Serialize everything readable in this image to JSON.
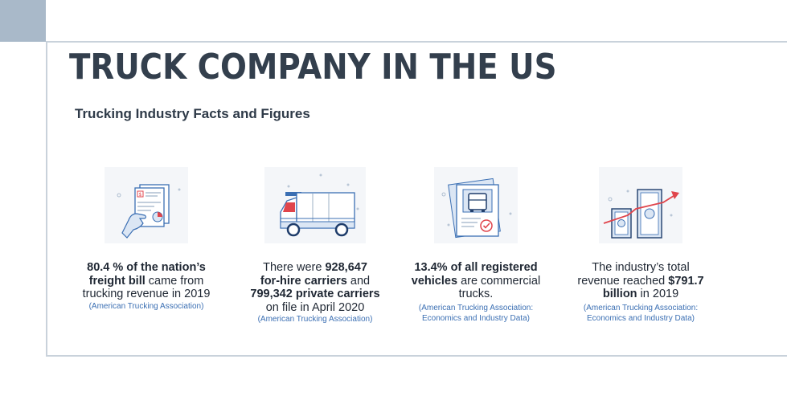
{
  "title": "TRUCK COMPANY IN THE US",
  "subtitle": "Trucking Industry Facts and Figures",
  "facts": [
    {
      "icon": "invoice-hand-icon",
      "p1": "80.4 % of the nation’s",
      "p2": "freight bill",
      "p3": " came from",
      "p4": "trucking revenue in 2019",
      "source": "(American Trucking Association)"
    },
    {
      "icon": "delivery-truck-icon",
      "p1": "There were ",
      "p2": "928,647",
      "p3": "for-hire carriers",
      "p4": " and",
      "p5": "799,342 private carriers",
      "p6": "on file in April 2020",
      "source": "(American Trucking Association)"
    },
    {
      "icon": "truck-registration-document-icon",
      "p1": "13.4% of all registered",
      "p2": "vehicles",
      "p3": " are commercial",
      "p4": "trucks.",
      "source1": "(American Trucking Association:",
      "source2": "Economics and Industry Data)"
    },
    {
      "icon": "money-growth-arrow-icon",
      "p1": "The industry’s total",
      "p2": "revenue reached ",
      "p3": "$791.7",
      "p4": "billion",
      "p5": " in 2019",
      "source1": "(American Trucking Association:",
      "source2": "Economics and Industry Data)"
    }
  ],
  "colors": {
    "title": "#333f4d",
    "accent_blue": "#3b6fb3",
    "accent_red": "#e0454c",
    "frame": "#c9d2db",
    "corner": "#a9b9c9"
  }
}
